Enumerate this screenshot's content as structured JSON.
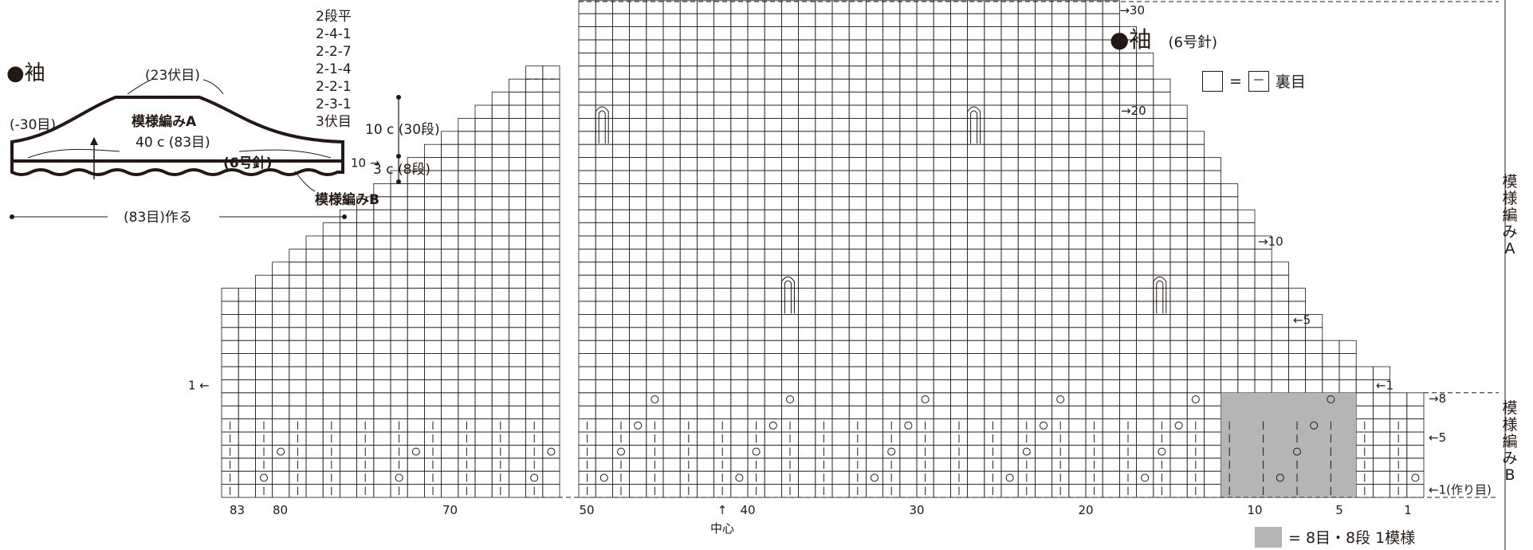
{
  "main_title": "●袖",
  "section_title": "●袖",
  "needle_info": "(6号針)",
  "legend": {
    "blank_eq": "=",
    "purl_symbol": "－",
    "purl_label": "裏目",
    "repeat_label": "= 8目・8段 1模様"
  },
  "schematic": {
    "bindoff_top": "(23伏目)",
    "decrease_left": "(-30目)",
    "pattern_a": "模様編みA",
    "width_label": "40 c (83目)",
    "needle": "(6号針)",
    "pattern_b": "模様編みB",
    "cast_on": "(83目)作る",
    "shaping": [
      "2段平",
      "2-4-1",
      "2-2-7",
      "2-1-4",
      "2-2-1",
      "2-3-1",
      "3伏目"
    ],
    "height_a": "10 c (30段)",
    "height_b": "3 c (8段)"
  },
  "side_labels": {
    "pattern_a": [
      "模",
      "様",
      "編",
      "み",
      "A"
    ],
    "pattern_b": [
      "模",
      "様",
      "編",
      "み",
      "B"
    ]
  },
  "row_labels": {
    "r30": "→30",
    "r20": "→20",
    "r10": "→10",
    "r5": "←5",
    "r1": "←1",
    "b8": "→8",
    "b5": "←5",
    "b1": "←1(作り目)",
    "left10": "10 →",
    "left1": "1 ←"
  },
  "col_labels": {
    "c83": "83",
    "c80": "80",
    "c70": "70",
    "c50": "50",
    "c40": "40",
    "c30": "30",
    "c20": "20",
    "c10": "10",
    "c5": "5",
    "c1": "1",
    "center_arrow": "↑",
    "center": "中心"
  },
  "colors": {
    "line": "#231815",
    "repeat_fill": "#b5b5b6"
  }
}
